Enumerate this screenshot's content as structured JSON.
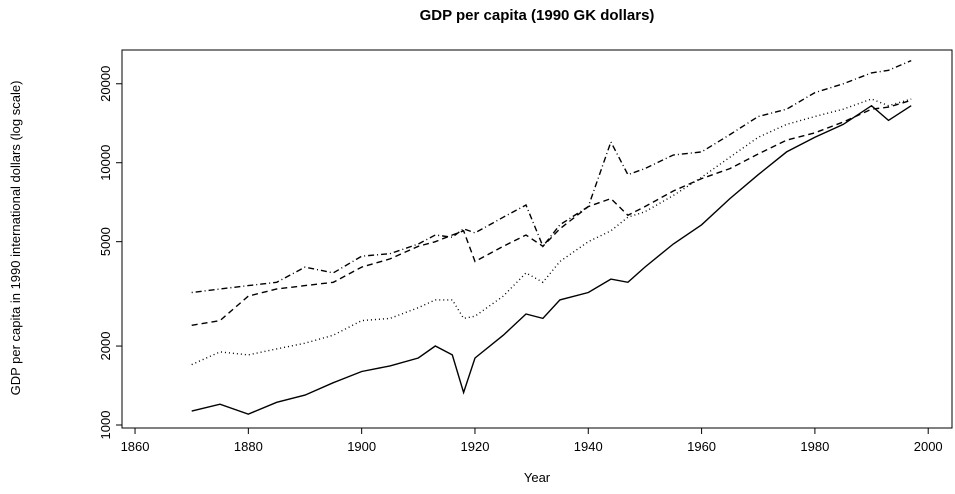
{
  "chart_data": {
    "type": "line",
    "title": "GDP per capita (1990 GK dollars)",
    "x_label": "Year",
    "y_label": "GDP per capita in 1990 international dollars (log scale)",
    "ylog": true,
    "xlim": [
      1857.7,
      2004.2
    ],
    "ylim": [
      974,
      26900
    ],
    "xticks": [
      1860,
      1880,
      1900,
      1920,
      1940,
      1960,
      1980,
      2000
    ],
    "yticks": [
      1000,
      2000,
      5000,
      10000,
      20000
    ],
    "x": [
      1870,
      1875,
      1880,
      1885,
      1890,
      1895,
      1900,
      1905,
      1910,
      1913,
      1916,
      1918,
      1920,
      1925,
      1929,
      1932,
      1935,
      1940,
      1944,
      1947,
      1950,
      1955,
      1960,
      1965,
      1970,
      1975,
      1980,
      1985,
      1990,
      1993,
      1997
    ],
    "series": [
      {
        "color": "#000000",
        "dash": "solid",
        "values": [
          1130,
          1200,
          1100,
          1220,
          1300,
          1450,
          1600,
          1680,
          1800,
          2000,
          1850,
          1330,
          1800,
          2200,
          2650,
          2550,
          3000,
          3200,
          3600,
          3500,
          4000,
          4900,
          5800,
          7300,
          9000,
          11000,
          12500,
          14000,
          16500,
          14500,
          16500
        ]
      },
      {
        "color": "#000000",
        "dash": "dotted",
        "values": [
          1700,
          1900,
          1850,
          1950,
          2050,
          2200,
          2500,
          2550,
          2800,
          3000,
          3000,
          2550,
          2600,
          3100,
          3800,
          3500,
          4200,
          5000,
          5500,
          6200,
          6500,
          7500,
          8800,
          10500,
          12500,
          14000,
          15000,
          16000,
          17500,
          16500,
          17500
        ]
      },
      {
        "color": "#000000",
        "dash": "dashed",
        "values": [
          2400,
          2500,
          3100,
          3300,
          3400,
          3500,
          4000,
          4300,
          4800,
          5000,
          5300,
          5500,
          4200,
          4800,
          5300,
          4800,
          5600,
          6800,
          7300,
          6300,
          6800,
          7800,
          8700,
          9500,
          10800,
          12200,
          13000,
          14300,
          16000,
          16300,
          17300
        ]
      },
      {
        "color": "#000000",
        "dash": "dotdash",
        "values": [
          3200,
          3300,
          3400,
          3500,
          4000,
          3800,
          4400,
          4500,
          4900,
          5300,
          5200,
          5600,
          5400,
          6200,
          6900,
          4800,
          5800,
          6800,
          12000,
          9000,
          9500,
          10700,
          11000,
          12800,
          15000,
          16000,
          18500,
          20000,
          22000,
          22500,
          24500
        ]
      }
    ]
  }
}
